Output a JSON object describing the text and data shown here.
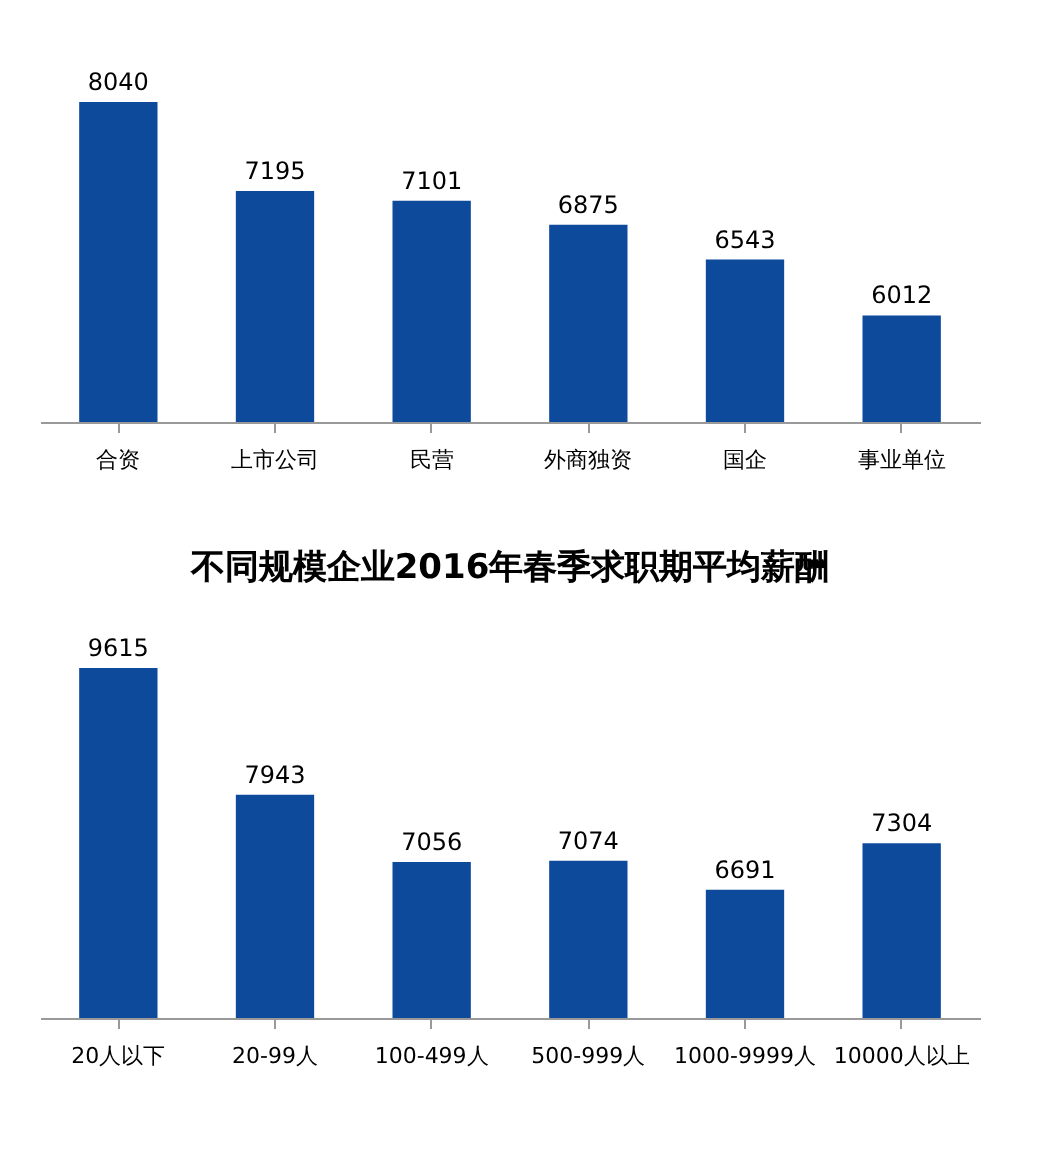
{
  "chart_data": [
    {
      "type": "bar",
      "categories": [
        "合资",
        "上市公司",
        "民营",
        "外商独资",
        "国企",
        "事业单位"
      ],
      "values": [
        8040,
        7195,
        7101,
        6875,
        6543,
        6012
      ],
      "color": "#0d4a9c",
      "data_labels": true,
      "ylim": [
        5000,
        8040
      ],
      "tick_labels": "x"
    },
    {
      "type": "bar",
      "title": "不同规模企业2016年春季求职期平均薪酬",
      "categories": [
        "20人以下",
        "20-99人",
        "100-499人",
        "500-999人",
        "1000-9999人",
        "10000人以上"
      ],
      "values": [
        9615,
        7943,
        7056,
        7074,
        6691,
        7304
      ],
      "color": "#0d4a9c",
      "data_labels": true,
      "ylim": [
        5000,
        9615
      ],
      "tick_labels": "x"
    }
  ]
}
